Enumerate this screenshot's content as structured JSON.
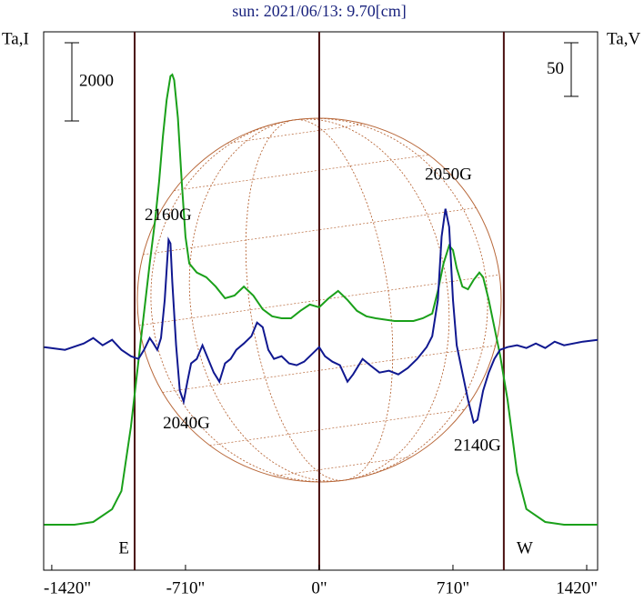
{
  "chart_data": {
    "type": "line",
    "title": "sun: 2021/06/13: 9.70[cm]",
    "y_label": "Ta,I",
    "y2_label": "Ta,V",
    "xlim": [
      -1463,
      1478
    ],
    "ylim": [
      -1163,
      12605
    ],
    "y2lim": [
      -208,
      294
    ],
    "xticks": [
      {
        "value": -1420,
        "label": "-1420\""
      },
      {
        "value": -710,
        "label": "-710\""
      },
      {
        "value": 0,
        "label": "0\""
      },
      {
        "value": 710,
        "label": "710\""
      },
      {
        "value": 1420,
        "label": "1420\""
      }
    ],
    "scale_bars": [
      {
        "value": 2000,
        "label": "2000",
        "axis": "y"
      },
      {
        "value": 50,
        "label": "50",
        "axis": "y2"
      }
    ],
    "limb_lines": [
      {
        "x": -980,
        "label": "E"
      },
      {
        "x": 0
      },
      {
        "x": 980,
        "label": "W"
      }
    ],
    "annotations": [
      {
        "text": "2160G",
        "x": -802,
        "y": 122
      },
      {
        "text": "2050G",
        "x": 686,
        "y": 160
      },
      {
        "text": "2040G",
        "x": -705,
        "y": -72
      },
      {
        "text": "2140G",
        "x": 840,
        "y": -93
      }
    ],
    "series": [
      {
        "color": "#1aa01a",
        "axis": "y",
        "x": [
          -1460,
          -1300,
          -1200,
          -1100,
          -1050,
          -1000,
          -950,
          -900,
          -870,
          -850,
          -830,
          -810,
          -790,
          -780,
          -770,
          -750,
          -730,
          -710,
          -690,
          -650,
          -600,
          -550,
          -500,
          -450,
          -400,
          -350,
          -300,
          -250,
          -200,
          -150,
          -100,
          -50,
          0,
          50,
          100,
          150,
          200,
          250,
          300,
          400,
          500,
          550,
          600,
          630,
          660,
          690,
          710,
          730,
          760,
          790,
          820,
          850,
          870,
          900,
          930,
          960,
          1000,
          1050,
          1100,
          1200,
          1300,
          1478
        ],
        "values": [
          0,
          0,
          70,
          395,
          860,
          2500,
          4590,
          6680,
          7840,
          8770,
          9930,
          10860,
          11470,
          11510,
          11370,
          10400,
          8770,
          7370,
          6680,
          6450,
          6330,
          6090,
          5790,
          5860,
          6090,
          5860,
          5510,
          5330,
          5280,
          5280,
          5470,
          5630,
          5560,
          5790,
          5980,
          5750,
          5470,
          5330,
          5280,
          5210,
          5210,
          5280,
          5400,
          5980,
          6680,
          7140,
          7020,
          6560,
          6090,
          6020,
          6260,
          6450,
          6330,
          5750,
          5050,
          4350,
          3190,
          1330,
          400,
          70,
          0,
          0
        ]
      },
      {
        "color": "#101890",
        "axis": "y2",
        "x": [
          -1460,
          -1350,
          -1250,
          -1200,
          -1150,
          -1100,
          -1050,
          -1000,
          -960,
          -930,
          -900,
          -880,
          -860,
          -840,
          -820,
          -800,
          -790,
          -780,
          -760,
          -740,
          -720,
          -700,
          -680,
          -650,
          -620,
          -590,
          -560,
          -530,
          -500,
          -470,
          -440,
          -400,
          -360,
          -330,
          -300,
          -270,
          -240,
          -200,
          -160,
          -120,
          -80,
          -40,
          0,
          30,
          70,
          110,
          150,
          180,
          230,
          270,
          320,
          370,
          420,
          470,
          520,
          570,
          600,
          630,
          650,
          670,
          690,
          710,
          730,
          760,
          790,
          820,
          840,
          870,
          900,
          930,
          960,
          1000,
          1050,
          1100,
          1150,
          1200,
          1250,
          1300,
          1400,
          1478
        ],
        "values": [
          0,
          -2.5,
          3.4,
          8.5,
          1.7,
          6.8,
          -2.5,
          -8.5,
          -11,
          -2.5,
          8.5,
          3.4,
          -2.5,
          8.5,
          44,
          100,
          96.6,
          61,
          1.7,
          -40.7,
          -50.8,
          -32.2,
          -15.2,
          -11,
          1.7,
          -11,
          -23.7,
          -32.2,
          -15.2,
          -11,
          -2.5,
          3.4,
          10.2,
          22.9,
          18.6,
          -2.5,
          -11,
          -8.5,
          -15.2,
          -16.9,
          -13.6,
          -6.8,
          0,
          -8.5,
          -13.6,
          -16.9,
          -32.2,
          -25.4,
          -11,
          -16.9,
          -23.7,
          -22,
          -25.4,
          -19.5,
          -11,
          0,
          10.2,
          44,
          103,
          129,
          112,
          44,
          1.7,
          -23.7,
          -49,
          -70.3,
          -67.8,
          -40.7,
          -23.7,
          -11,
          -2.5,
          0,
          1.7,
          -0.8,
          3.4,
          -0.8,
          5.1,
          1.7,
          5.1,
          6.8
        ]
      }
    ]
  }
}
